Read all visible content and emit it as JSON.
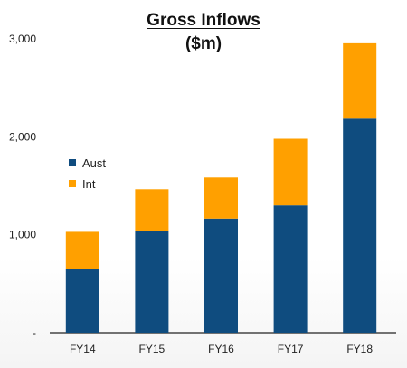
{
  "chart_data": {
    "type": "bar",
    "stacked": true,
    "title": "Gross Inflows",
    "subtitle": "($m)",
    "categories": [
      "FY14",
      "FY15",
      "FY16",
      "FY17",
      "FY18"
    ],
    "series": [
      {
        "name": "Aust",
        "color": "#0f4c7f",
        "values": [
          655,
          1035,
          1165,
          1300,
          2185
        ]
      },
      {
        "name": "Int",
        "color": "#ffa000",
        "values": [
          375,
          430,
          420,
          680,
          770
        ]
      }
    ],
    "ylim": [
      0,
      3000
    ],
    "yticks": [
      0,
      1000,
      2000,
      3000
    ],
    "ytick_labels": [
      "-",
      "1,000",
      "2,000",
      "3,000"
    ],
    "legend_position": "left",
    "grid": false
  }
}
